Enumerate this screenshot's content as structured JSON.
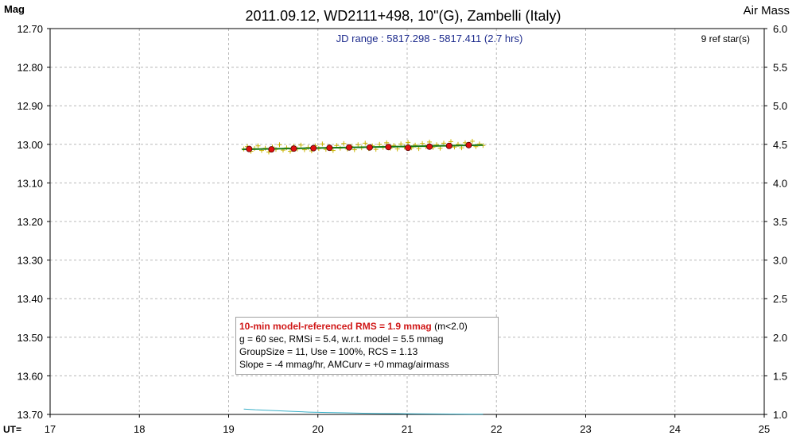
{
  "chart_data": {
    "type": "scatter",
    "title": "2011.09.12, WD2111+498, 10\"(G), Zambelli (Italy)",
    "left_axis_label": "Mag",
    "right_axis_label": "Air Mass",
    "x_axis_prefix": "UT=",
    "jd_range": "JD range : 5817.298 - 5817.411 (2.7 hrs)",
    "ref_stars": "9 ref star(s)",
    "xlim": [
      17,
      25
    ],
    "ylim_mag": [
      12.7,
      13.7
    ],
    "ylim_airmass": [
      1.0,
      6.0
    ],
    "x_ticks": [
      "17",
      "18",
      "19",
      "20",
      "21",
      "22",
      "23",
      "24",
      "25"
    ],
    "y_ticks_mag": [
      "12.70",
      "12.80",
      "12.90",
      "13.00",
      "13.10",
      "13.20",
      "13.30",
      "13.40",
      "13.50",
      "13.60",
      "13.70"
    ],
    "y_ticks_airmass": [
      "6.0",
      "5.5",
      "5.0",
      "4.5",
      "4.0",
      "3.5",
      "3.0",
      "2.5",
      "2.0",
      "1.5",
      "1.0"
    ],
    "grid": true,
    "series": [
      {
        "color": "#c8b400",
        "points": [
          [
            19.17,
            13.012
          ],
          [
            19.21,
            13.006
          ],
          [
            19.25,
            13.018
          ],
          [
            19.29,
            13.011
          ],
          [
            19.33,
            13.004
          ],
          [
            19.37,
            13.016
          ],
          [
            19.41,
            13.01
          ],
          [
            19.45,
            13.02
          ],
          [
            19.49,
            13.007
          ],
          [
            19.53,
            13.013
          ],
          [
            19.57,
            13.001
          ],
          [
            19.61,
            13.015
          ],
          [
            19.65,
            13.009
          ],
          [
            19.69,
            13.018
          ],
          [
            19.73,
            13.005
          ],
          [
            19.77,
            13.012
          ],
          [
            19.81,
            13.002
          ],
          [
            19.85,
            13.014
          ],
          [
            19.89,
            13.008
          ],
          [
            19.93,
            13.017
          ],
          [
            19.97,
            13.004
          ],
          [
            20.01,
            13.011
          ],
          [
            20.05,
            12.999
          ],
          [
            20.09,
            13.013
          ],
          [
            20.13,
            13.006
          ],
          [
            20.17,
            13.016
          ],
          [
            20.21,
            13.003
          ],
          [
            20.25,
            13.01
          ],
          [
            20.29,
            12.998
          ],
          [
            20.33,
            13.012
          ],
          [
            20.37,
            13.005
          ],
          [
            20.41,
            13.014
          ],
          [
            20.45,
            13.001
          ],
          [
            20.49,
            13.009
          ],
          [
            20.53,
            12.997
          ],
          [
            20.57,
            13.011
          ],
          [
            20.61,
            13.004
          ],
          [
            20.65,
            13.013
          ],
          [
            20.69,
            13.0
          ],
          [
            20.73,
            13.008
          ],
          [
            20.77,
            12.996
          ],
          [
            20.81,
            13.01
          ],
          [
            20.85,
            13.003
          ],
          [
            20.89,
            13.012
          ],
          [
            20.93,
            12.999
          ],
          [
            20.97,
            13.007
          ],
          [
            21.01,
            12.995
          ],
          [
            21.05,
            13.009
          ],
          [
            21.09,
            13.002
          ],
          [
            21.13,
            13.011
          ],
          [
            21.17,
            12.998
          ],
          [
            21.21,
            13.006
          ],
          [
            21.25,
            12.994
          ],
          [
            21.29,
            13.008
          ],
          [
            21.33,
            13.001
          ],
          [
            21.37,
            13.01
          ],
          [
            21.41,
            12.997
          ],
          [
            21.45,
            13.005
          ],
          [
            21.49,
            12.993
          ],
          [
            21.53,
            13.007
          ],
          [
            21.57,
            13.0
          ],
          [
            21.61,
            13.009
          ],
          [
            21.65,
            12.996
          ],
          [
            21.69,
            13.004
          ],
          [
            21.73,
            12.992
          ],
          [
            21.77,
            13.006
          ],
          [
            21.81,
            12.999
          ],
          [
            21.85,
            13.003
          ]
        ]
      },
      {
        "color": "#e01010",
        "points": [
          [
            19.23,
            13.012
          ],
          [
            19.48,
            13.013
          ],
          [
            19.73,
            13.011
          ],
          [
            19.95,
            13.01
          ],
          [
            20.13,
            13.009
          ],
          [
            20.35,
            13.008
          ],
          [
            20.58,
            13.008
          ],
          [
            20.79,
            13.007
          ],
          [
            21.01,
            13.009
          ],
          [
            21.25,
            13.006
          ],
          [
            21.47,
            13.004
          ],
          [
            21.69,
            13.002
          ]
        ]
      },
      {
        "color": "#1a7a1a",
        "points": [
          [
            19.15,
            13.013
          ],
          [
            21.85,
            13.002
          ]
        ]
      },
      {
        "color": "#3ab0c8",
        "axis": "airmass",
        "points": [
          [
            19.17,
            1.07
          ],
          [
            19.3,
            1.06
          ],
          [
            19.5,
            1.05
          ],
          [
            19.7,
            1.04
          ],
          [
            19.9,
            1.03
          ],
          [
            20.1,
            1.025
          ],
          [
            20.3,
            1.02
          ],
          [
            20.5,
            1.015
          ],
          [
            20.7,
            1.012
          ],
          [
            20.9,
            1.01
          ],
          [
            21.1,
            1.008
          ],
          [
            21.3,
            1.006
          ],
          [
            21.5,
            1.005
          ],
          [
            21.7,
            1.004
          ],
          [
            21.85,
            1.004
          ]
        ]
      }
    ]
  },
  "info": {
    "rms": "10-min model-referenced RMS = 1.9 mmag",
    "rms_note": " (m<2.0)",
    "line2": "g = 60 sec, RMSi = 5.4, w.r.t. model = 5.5 mmag",
    "line3": "GroupSize = 11, Use = 100%, RCS = 1.13",
    "line4": "Slope = -4 mmag/hr, AMCurv = +0 mmag/airmass"
  }
}
